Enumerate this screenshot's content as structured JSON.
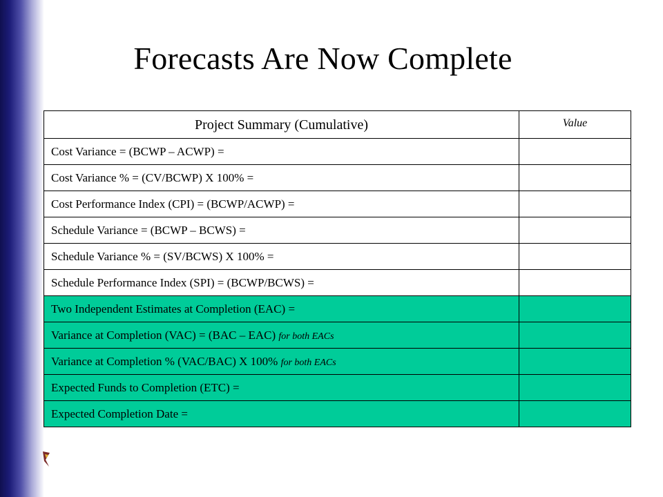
{
  "slide": {
    "title": "Forecasts Are Now Complete"
  },
  "table": {
    "header": {
      "label": "Project Summary (Cumulative)",
      "value": "Value"
    },
    "rows": [
      {
        "label": "Cost Variance = (BCWP – ACWP) =",
        "suffix": "",
        "value": "",
        "highlight": false
      },
      {
        "label": "Cost Variance % = (CV/BCWP) X 100% =",
        "suffix": "",
        "value": "",
        "highlight": false
      },
      {
        "label": "Cost Performance Index (CPI) = (BCWP/ACWP) =",
        "suffix": "",
        "value": "",
        "highlight": false
      },
      {
        "label": "Schedule Variance = (BCWP – BCWS) =",
        "suffix": "",
        "value": "",
        "highlight": false
      },
      {
        "label": "Schedule Variance % = (SV/BCWS) X 100% =",
        "suffix": "",
        "value": "",
        "highlight": false
      },
      {
        "label": "Schedule Performance Index (SPI) = (BCWP/BCWS) =",
        "suffix": "",
        "value": "",
        "highlight": false
      },
      {
        "label": "Two Independent Estimates at Completion (EAC) =",
        "suffix": "",
        "value": "",
        "highlight": true
      },
      {
        "label": "Variance at Completion (VAC) = (BAC – EAC) ",
        "suffix": "for both EACs",
        "value": "",
        "highlight": true
      },
      {
        "label": "Variance at Completion % (VAC/BAC) X 100% ",
        "suffix": "for both EACs",
        "value": "",
        "highlight": true
      },
      {
        "label": "Expected Funds to Completion (ETC) =",
        "suffix": "",
        "value": "",
        "highlight": true
      },
      {
        "label": "Expected Completion Date =",
        "suffix": "",
        "value": "",
        "highlight": true
      }
    ]
  },
  "colors": {
    "highlight": "#00cc99",
    "sidebar_dark": "#1c1c78"
  }
}
